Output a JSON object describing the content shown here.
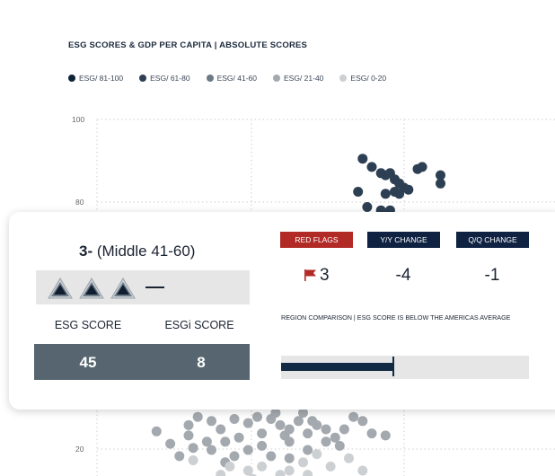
{
  "chart_data": {
    "type": "scatter",
    "title": "ESG SCORES & GDP PER CAPITA | ABSOLUTE SCORES",
    "ylim": [
      0,
      100
    ],
    "yticks": [
      "100",
      "80",
      "20"
    ],
    "legend": [
      {
        "label": "ESG/ 81-100",
        "color": "#0f2236"
      },
      {
        "label": "ESG/ 61-80",
        "color": "#2d3f52"
      },
      {
        "label": "ESG/ 41-60",
        "color": "#6c7a86"
      },
      {
        "label": "ESG/ 21-40",
        "color": "#a3a9ae"
      },
      {
        "label": "ESG/ 0-20",
        "color": "#cdd0d3"
      }
    ],
    "series": [
      {
        "name": "ESG/ 61-80",
        "color": "#2d3f52",
        "points": [
          [
            0.58,
            90.5
          ],
          [
            0.6,
            88.5
          ],
          [
            0.62,
            87
          ],
          [
            0.63,
            86.5
          ],
          [
            0.64,
            87
          ],
          [
            0.65,
            85.5
          ],
          [
            0.66,
            84.5
          ],
          [
            0.67,
            83.5
          ],
          [
            0.65,
            82.5
          ],
          [
            0.63,
            82
          ],
          [
            0.66,
            82
          ],
          [
            0.68,
            83
          ],
          [
            0.7,
            88
          ],
          [
            0.71,
            88.5
          ],
          [
            0.75,
            86.5
          ],
          [
            0.75,
            84.5
          ],
          [
            0.57,
            82.5
          ],
          [
            0.59,
            78.8
          ],
          [
            0.62,
            78
          ],
          [
            0.64,
            78
          ]
        ]
      },
      {
        "name": "ESG/ 21-40",
        "color": "#a3a9ae",
        "points": [
          [
            0.13,
            24.5
          ],
          [
            0.16,
            21.5
          ],
          [
            0.2,
            26
          ],
          [
            0.22,
            28
          ],
          [
            0.25,
            27
          ],
          [
            0.27,
            25
          ],
          [
            0.3,
            27.5
          ],
          [
            0.33,
            26.5
          ],
          [
            0.35,
            28
          ],
          [
            0.38,
            27.5
          ],
          [
            0.4,
            26
          ],
          [
            0.42,
            25
          ],
          [
            0.44,
            27
          ],
          [
            0.46,
            24
          ],
          [
            0.48,
            26
          ],
          [
            0.5,
            25
          ],
          [
            0.52,
            23
          ],
          [
            0.54,
            25
          ],
          [
            0.56,
            28
          ],
          [
            0.58,
            27
          ],
          [
            0.6,
            24
          ],
          [
            0.45,
            29
          ],
          [
            0.41,
            23.5
          ],
          [
            0.36,
            24
          ],
          [
            0.31,
            23
          ],
          [
            0.28,
            22
          ],
          [
            0.24,
            22
          ],
          [
            0.21,
            20.5
          ],
          [
            0.18,
            18.5
          ],
          [
            0.25,
            20
          ],
          [
            0.33,
            20
          ],
          [
            0.36,
            21
          ],
          [
            0.38,
            18.5
          ],
          [
            0.42,
            18
          ],
          [
            0.46,
            20
          ],
          [
            0.5,
            22
          ],
          [
            0.53,
            21
          ],
          [
            0.3,
            18.5
          ],
          [
            0.28,
            17
          ],
          [
            0.63,
            23.5
          ],
          [
            0.47,
            27
          ],
          [
            0.39,
            29
          ],
          [
            0.2,
            23.5
          ],
          [
            0.42,
            22
          ]
        ]
      },
      {
        "name": "ESG/ 0-20",
        "color": "#cdd0d3",
        "points": [
          [
            0.21,
            17.5
          ],
          [
            0.29,
            16
          ],
          [
            0.33,
            15
          ],
          [
            0.36,
            16
          ],
          [
            0.42,
            15
          ],
          [
            0.45,
            17
          ],
          [
            0.48,
            19
          ],
          [
            0.51,
            16
          ],
          [
            0.55,
            18
          ],
          [
            0.58,
            15
          ],
          [
            0.4,
            14
          ],
          [
            0.34,
            13
          ],
          [
            0.27,
            14
          ],
          [
            0.24,
            12
          ],
          [
            0.46,
            14
          ]
        ]
      }
    ]
  },
  "card": {
    "tier_rank": "3-",
    "tier_label": "(Middle 41-60)",
    "esg_score_label": "ESG SCORE",
    "esgi_score_label": "ESGi SCORE",
    "esg_score": "45",
    "esgi_score": "8",
    "red_flags_label": "RED FLAGS",
    "yy_change_label": "Y/Y CHANGE",
    "qq_change_label": "Q/Q CHANGE",
    "red_flags": "3",
    "yy_change": "-4",
    "qq_change": "-1",
    "region_text": "REGION COMPARISON | ESG SCORE IS BELOW THE AMERICAS AVERAGE",
    "region_fraction": 0.45
  },
  "colors": {
    "red": "#b12a26",
    "navy": "#0f2242",
    "slate": "#56656f"
  }
}
